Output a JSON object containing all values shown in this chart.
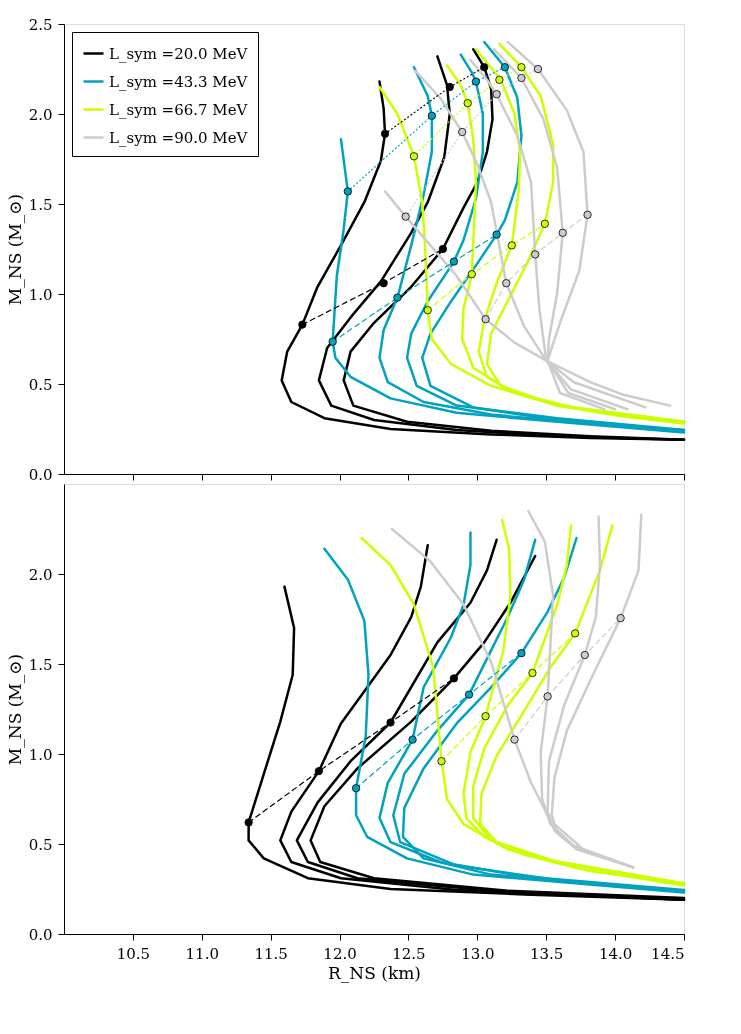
{
  "chart_data": [
    {
      "type": "line",
      "ylabel": "M_NS   (M_⊙)",
      "xlim": [
        10,
        14.5
      ],
      "ylim": [
        0,
        2.5
      ],
      "tick_labels": "y",
      "legend": "top left",
      "line_style": "solid",
      "xticks": [
        10.5,
        11,
        11.5,
        12,
        12.5,
        13,
        13.5,
        14,
        14.5
      ],
      "yticks": [
        {
          "value": 0,
          "label": "0.0"
        },
        0.5,
        {
          "value": 1,
          "label": "1.0"
        },
        1.5,
        {
          "value": 2,
          "label": "2.0"
        },
        2.5
      ],
      "series": [
        {
          "name": "L_sym =20.0 MeV",
          "color": "#000000",
          "x": [
            12.29,
            12.32,
            12.33,
            12.3,
            12.18,
            12.01,
            11.84,
            11.73,
            11.62,
            11.58,
            11.65,
            11.89,
            12.37,
            13.1,
            13.82,
            14.5
          ],
          "values": [
            2.18,
            2.03,
            1.89,
            1.74,
            1.51,
            1.27,
            1.04,
            0.83,
            0.68,
            0.52,
            0.4,
            0.31,
            0.25,
            0.22,
            0.2,
            0.19
          ]
        },
        {
          "color": "#000000",
          "x": [
            12.71,
            12.78,
            12.8,
            12.76,
            12.64,
            12.52,
            12.3,
            12.08,
            11.91,
            11.85,
            11.94,
            12.25,
            12.85,
            13.58,
            14.5
          ],
          "values": [
            2.32,
            2.16,
            2.0,
            1.76,
            1.51,
            1.34,
            1.07,
            0.87,
            0.7,
            0.52,
            0.38,
            0.3,
            0.245,
            0.21,
            0.19
          ]
        },
        {
          "color": "#000000",
          "x": [
            12.97,
            13.05,
            13.1,
            13.11,
            13.07,
            13.0,
            12.9,
            12.75,
            12.52,
            12.25,
            12.08,
            12.03,
            12.1,
            12.49,
            13.1,
            13.82,
            14.5
          ],
          "values": [
            2.36,
            2.26,
            2.14,
            1.97,
            1.79,
            1.62,
            1.48,
            1.25,
            1.04,
            0.84,
            0.68,
            0.52,
            0.38,
            0.29,
            0.24,
            0.21,
            0.19
          ]
        },
        {
          "name": "L_sym =43.3 MeV",
          "color": "#00a2bf",
          "x": [
            12.01,
            12.06,
            12.03,
            11.98,
            11.95,
            11.97,
            12.08,
            12.37,
            12.85,
            13.58,
            14.5
          ],
          "values": [
            1.86,
            1.57,
            1.36,
            1.1,
            0.735,
            0.645,
            0.54,
            0.42,
            0.34,
            0.29,
            0.23
          ]
        },
        {
          "color": "#00a2bf",
          "x": [
            12.54,
            12.64,
            12.67,
            12.67,
            12.61,
            12.52,
            12.42,
            12.32,
            12.29,
            12.35,
            12.61,
            13.1,
            13.82,
            14.5
          ],
          "values": [
            2.26,
            2.1,
            1.99,
            1.79,
            1.55,
            1.27,
            0.98,
            0.8,
            0.645,
            0.51,
            0.4,
            0.33,
            0.28,
            0.245
          ]
        },
        {
          "color": "#00a2bf",
          "x": [
            12.88,
            12.96,
            12.99,
            13.04,
            13.04,
            12.99,
            12.9,
            12.83,
            12.64,
            12.52,
            12.49,
            12.56,
            12.85,
            13.58,
            14.5
          ],
          "values": [
            2.33,
            2.23,
            2.18,
            2.0,
            1.79,
            1.53,
            1.3,
            1.18,
            0.96,
            0.78,
            0.645,
            0.49,
            0.38,
            0.31,
            0.245
          ]
        },
        {
          "color": "#00a2bf",
          "x": [
            13.05,
            13.2,
            13.29,
            13.32,
            13.29,
            13.2,
            13.14,
            13.0,
            12.81,
            12.66,
            12.6,
            12.66,
            12.97,
            13.58,
            14.5
          ],
          "values": [
            2.4,
            2.26,
            2.09,
            1.88,
            1.62,
            1.41,
            1.33,
            1.17,
            0.96,
            0.78,
            0.645,
            0.49,
            0.37,
            0.3,
            0.24
          ]
        },
        {
          "name": "L_sym =66.7 MeV",
          "color": "#ccff00",
          "x": [
            12.29,
            12.42,
            12.54,
            12.6,
            12.62,
            12.64,
            12.67,
            12.81,
            13.1,
            13.58,
            14.06,
            14.5
          ],
          "values": [
            2.15,
            2.0,
            1.765,
            1.51,
            1.27,
            0.91,
            0.75,
            0.61,
            0.49,
            0.38,
            0.32,
            0.28
          ]
        },
        {
          "color": "#ccff00",
          "x": [
            12.78,
            12.88,
            12.93,
            12.97,
            12.99,
            12.96,
            12.9,
            12.89,
            12.97,
            13.22,
            13.58,
            14.5
          ],
          "values": [
            2.27,
            2.16,
            2.06,
            1.86,
            1.62,
            1.11,
            0.92,
            0.75,
            0.59,
            0.47,
            0.38,
            0.29
          ]
        },
        {
          "color": "#ccff00",
          "x": [
            12.99,
            13.17,
            13.27,
            13.31,
            13.3,
            13.25,
            13.14,
            13.05,
            13.01,
            13.07,
            13.27,
            13.7,
            14.5
          ],
          "values": [
            2.36,
            2.19,
            2.0,
            1.79,
            1.57,
            1.27,
            1.06,
            0.85,
            0.68,
            0.54,
            0.45,
            0.37,
            0.28
          ]
        },
        {
          "color": "#ccff00",
          "x": [
            13.16,
            13.32,
            13.46,
            13.55,
            13.55,
            13.49,
            13.36,
            13.22,
            13.1,
            13.07,
            13.17,
            13.58,
            14.5
          ],
          "values": [
            2.39,
            2.26,
            2.1,
            1.83,
            1.62,
            1.39,
            1.17,
            0.96,
            0.78,
            0.61,
            0.49,
            0.38,
            0.29
          ]
        },
        {
          "name": "L_sym =90.0 MeV",
          "color": "#cccccc",
          "x": [
            12.33,
            12.48,
            12.66,
            12.85,
            13.06,
            13.27,
            13.5,
            13.82,
            14.06,
            14.4
          ],
          "values": [
            1.57,
            1.43,
            1.27,
            1.1,
            0.86,
            0.73,
            0.63,
            0.51,
            0.44,
            0.38
          ]
        },
        {
          "color": "#cccccc",
          "x": [
            12.55,
            12.73,
            12.89,
            13.0,
            13.1,
            13.21,
            13.34,
            13.5,
            13.7,
            14.22
          ],
          "values": [
            2.24,
            2.09,
            1.9,
            1.72,
            1.51,
            1.06,
            0.82,
            0.63,
            0.51,
            0.37
          ]
        },
        {
          "color": "#cccccc",
          "x": [
            12.95,
            13.07,
            13.14,
            13.29,
            13.39,
            13.42,
            13.45,
            13.5,
            13.68,
            14.09
          ],
          "values": [
            2.3,
            2.19,
            2.11,
            1.88,
            1.62,
            1.22,
            0.92,
            0.63,
            0.47,
            0.36
          ]
        },
        {
          "color": "#cccccc",
          "x": [
            13.12,
            13.32,
            13.48,
            13.58,
            13.62,
            13.58,
            13.52,
            13.51,
            13.66,
            14.0
          ],
          "values": [
            2.36,
            2.2,
            1.97,
            1.7,
            1.34,
            1.01,
            0.75,
            0.63,
            0.45,
            0.36
          ]
        },
        {
          "color": "#cccccc",
          "x": [
            13.22,
            13.44,
            13.65,
            13.77,
            13.8,
            13.74,
            13.6,
            13.51,
            13.6,
            13.92
          ],
          "values": [
            2.4,
            2.25,
            2.02,
            1.79,
            1.44,
            1.13,
            0.84,
            0.63,
            0.45,
            0.36
          ]
        },
        {
          "color": "#000000",
          "line_style": "dotted",
          "x": [
            12.33,
            12.8,
            13.05
          ],
          "values": [
            1.89,
            2.15,
            2.26
          ]
        },
        {
          "color": "#000000",
          "line_style": "dashed",
          "x": [
            11.73,
            12.32,
            12.75
          ],
          "values": [
            0.83,
            1.06,
            1.25
          ]
        },
        {
          "color": "#00a2bf",
          "line_style": "dotted",
          "x": [
            12.06,
            12.67,
            12.99,
            13.2
          ],
          "values": [
            1.57,
            1.99,
            2.18,
            2.26
          ]
        },
        {
          "color": "#00a2bf",
          "line_style": "dashed",
          "x": [
            11.95,
            12.42,
            12.83,
            13.14
          ],
          "values": [
            0.735,
            0.98,
            1.18,
            1.33
          ]
        },
        {
          "color": "#ccff00",
          "line_style": "dotted",
          "x": [
            12.54,
            12.93,
            13.16,
            13.32
          ],
          "values": [
            1.765,
            2.06,
            2.19,
            2.26
          ]
        },
        {
          "color": "#ccff00",
          "line_style": "dashed",
          "x": [
            12.64,
            12.96,
            13.25,
            13.49
          ],
          "values": [
            0.91,
            1.11,
            1.27,
            1.39
          ]
        },
        {
          "color": "#cccccc",
          "line_style": "dotted",
          "x": [
            12.48,
            12.89,
            13.14,
            13.32,
            13.44
          ],
          "values": [
            1.43,
            1.9,
            2.11,
            2.2,
            2.25
          ]
        },
        {
          "color": "#cccccc",
          "line_style": "dashed",
          "x": [
            13.06,
            13.21,
            13.42,
            13.62,
            13.8
          ],
          "values": [
            0.86,
            1.06,
            1.22,
            1.34,
            1.44
          ]
        },
        {
          "type": "scatter",
          "color": "#000000",
          "marker": "circle",
          "x": [
            12.33,
            12.8,
            13.05,
            11.73,
            12.32,
            12.75
          ],
          "values": [
            1.89,
            2.15,
            2.26,
            0.83,
            1.06,
            1.25
          ]
        },
        {
          "type": "scatter",
          "color": "#00a2bf",
          "marker": "circle",
          "x": [
            12.06,
            12.67,
            12.99,
            13.2,
            11.95,
            12.42,
            12.83,
            13.14
          ],
          "values": [
            1.57,
            1.99,
            2.18,
            2.26,
            0.735,
            0.98,
            1.18,
            1.33
          ]
        },
        {
          "type": "scatter",
          "color": "#ccff00",
          "marker": "circle",
          "x": [
            12.54,
            12.93,
            13.16,
            13.32,
            12.64,
            12.96,
            13.25,
            13.49
          ],
          "values": [
            1.765,
            2.06,
            2.19,
            2.26,
            0.91,
            1.11,
            1.27,
            1.39
          ]
        },
        {
          "type": "scatter",
          "color": "#cccccc",
          "marker": "circle",
          "x": [
            12.48,
            12.89,
            13.14,
            13.32,
            13.44,
            13.06,
            13.21,
            13.42,
            13.62,
            13.8
          ],
          "values": [
            1.43,
            1.9,
            2.11,
            2.2,
            2.25,
            0.86,
            1.06,
            1.22,
            1.34,
            1.44
          ]
        }
      ]
    },
    {
      "type": "line",
      "xlabel": "R_NS   (km)",
      "ylabel": "M_NS   (M_⊙)",
      "xlim": [
        10,
        14.5
      ],
      "ylim": [
        0,
        2.5
      ],
      "legend": "top left",
      "line_style": "solid",
      "xticks": [
        10.5,
        {
          "value": 11,
          "label": "11.0"
        },
        11.5,
        {
          "value": 12,
          "label": "12.0"
        },
        12.5,
        {
          "value": 13,
          "label": "13.0"
        },
        13.5,
        {
          "value": 14,
          "label": "14.0"
        },
        14.5
      ],
      "yticks": [
        {
          "value": 0,
          "label": "0.0"
        },
        0.5,
        {
          "value": 1,
          "label": "1.0"
        },
        1.5,
        {
          "value": 2,
          "label": "2.0"
        }
      ],
      "series": [
        {
          "name": "L_sym =20.0 MeV",
          "color": "#000000",
          "x": [
            11.6,
            11.67,
            11.66,
            11.57,
            11.43,
            11.34,
            11.34,
            11.45,
            11.77,
            12.37,
            13.34,
            14.5
          ],
          "values": [
            1.93,
            1.7,
            1.44,
            1.18,
            0.84,
            0.62,
            0.52,
            0.42,
            0.31,
            0.25,
            0.22,
            0.19
          ]
        },
        {
          "color": "#000000",
          "x": [
            12.64,
            12.59,
            12.52,
            12.37,
            12.2,
            12.01,
            11.85,
            11.65,
            11.57,
            11.65,
            12.01,
            12.85,
            14.5
          ],
          "values": [
            2.16,
            1.93,
            1.76,
            1.55,
            1.37,
            1.17,
            0.905,
            0.68,
            0.52,
            0.4,
            0.31,
            0.245,
            0.19
          ]
        },
        {
          "color": "#000000",
          "x": [
            13.14,
            13.07,
            12.95,
            12.71,
            12.37,
            12.08,
            11.84,
            11.69,
            11.77,
            12.13,
            13.1,
            14.5
          ],
          "values": [
            2.19,
            2.02,
            1.84,
            1.62,
            1.175,
            0.96,
            0.73,
            0.52,
            0.4,
            0.31,
            0.24,
            0.19
          ]
        },
        {
          "color": "#000000",
          "x": [
            13.42,
            13.24,
            13.05,
            12.83,
            12.52,
            12.13,
            11.89,
            11.79,
            11.86,
            12.25,
            13.22,
            14.5
          ],
          "values": [
            2.1,
            1.84,
            1.62,
            1.42,
            1.18,
            0.92,
            0.71,
            0.52,
            0.4,
            0.31,
            0.24,
            0.2
          ]
        },
        {
          "name": "L_sym =43.3 MeV",
          "color": "#00a2bf",
          "x": [
            11.89,
            12.06,
            12.18,
            12.21,
            12.19,
            12.12,
            12.12,
            12.2,
            12.49,
            12.97,
            13.58,
            14.5
          ],
          "values": [
            2.14,
            1.97,
            1.74,
            1.44,
            1.1,
            0.81,
            0.66,
            0.54,
            0.42,
            0.33,
            0.29,
            0.23
          ]
        },
        {
          "color": "#00a2bf",
          "x": [
            12.95,
            12.95,
            12.9,
            12.81,
            12.61,
            12.53,
            12.35,
            12.29,
            12.37,
            12.73,
            13.34,
            14.5
          ],
          "values": [
            2.23,
            2.05,
            1.83,
            1.65,
            1.37,
            1.08,
            0.84,
            0.645,
            0.51,
            0.4,
            0.32,
            0.245
          ]
        },
        {
          "color": "#00a2bf",
          "x": [
            13.42,
            13.34,
            13.22,
            12.94,
            12.71,
            12.47,
            12.39,
            12.44,
            12.85,
            13.58,
            14.5
          ],
          "values": [
            2.19,
            1.97,
            1.76,
            1.33,
            1.13,
            0.89,
            0.66,
            0.51,
            0.38,
            0.3,
            0.24
          ]
        },
        {
          "color": "#00a2bf",
          "x": [
            13.72,
            13.63,
            13.51,
            13.32,
            13.1,
            12.85,
            12.61,
            12.47,
            12.46,
            12.61,
            13.1,
            14.5
          ],
          "values": [
            2.2,
            1.98,
            1.79,
            1.56,
            1.37,
            1.17,
            0.92,
            0.7,
            0.54,
            0.42,
            0.33,
            0.24
          ]
        },
        {
          "name": "L_sym =66.7 MeV",
          "color": "#ccff00",
          "x": [
            12.16,
            12.37,
            12.54,
            12.68,
            12.74,
            12.78,
            12.9,
            13.22,
            13.7,
            14.5
          ],
          "values": [
            2.2,
            2.05,
            1.83,
            1.48,
            0.96,
            0.75,
            0.61,
            0.47,
            0.37,
            0.27
          ]
        },
        {
          "color": "#ccff00",
          "x": [
            13.18,
            13.23,
            13.24,
            13.19,
            13.06,
            12.95,
            12.9,
            12.92,
            13.05,
            13.34,
            13.82,
            14.5
          ],
          "values": [
            2.3,
            2.14,
            1.88,
            1.58,
            1.21,
            1.01,
            0.78,
            0.645,
            0.54,
            0.44,
            0.35,
            0.28
          ]
        },
        {
          "color": "#ccff00",
          "x": [
            13.68,
            13.65,
            13.58,
            13.4,
            13.22,
            13.05,
            12.97,
            12.97,
            13.1,
            13.46,
            14.5
          ],
          "values": [
            2.27,
            2.05,
            1.83,
            1.45,
            1.27,
            1.03,
            0.82,
            0.645,
            0.52,
            0.42,
            0.28
          ]
        },
        {
          "color": "#ccff00",
          "x": [
            13.98,
            13.89,
            13.71,
            13.53,
            13.34,
            13.14,
            13.03,
            13.02,
            13.14,
            13.58,
            14.5
          ],
          "values": [
            2.27,
            2.02,
            1.67,
            1.48,
            1.24,
            0.99,
            0.78,
            0.61,
            0.51,
            0.4,
            0.28
          ]
        },
        {
          "name": "L_sym =90.0 MeV",
          "color": "#cccccc",
          "x": [
            12.38,
            12.66,
            12.9,
            13.1,
            13.27,
            13.39,
            13.53,
            13.77,
            14.13
          ],
          "values": [
            2.25,
            2.07,
            1.83,
            1.51,
            1.08,
            0.84,
            0.63,
            0.47,
            0.37
          ]
        },
        {
          "color": "#cccccc",
          "x": [
            13.37,
            13.49,
            13.55,
            13.51,
            13.46,
            13.47,
            13.53,
            13.7,
            14.13
          ],
          "values": [
            2.35,
            2.18,
            1.88,
            1.32,
            1.01,
            0.75,
            0.61,
            0.49,
            0.37
          ]
        },
        {
          "color": "#cccccc",
          "x": [
            13.88,
            13.89,
            13.86,
            13.78,
            13.63,
            13.52,
            13.51,
            13.56,
            13.7,
            14.13
          ],
          "values": [
            2.32,
            2.05,
            1.76,
            1.55,
            1.27,
            0.96,
            0.68,
            0.575,
            0.49,
            0.37
          ]
        },
        {
          "color": "#cccccc",
          "x": [
            14.19,
            14.17,
            14.04,
            13.82,
            13.65,
            13.56,
            13.54,
            13.58,
            13.72,
            14.13
          ],
          "values": [
            2.33,
            2.02,
            1.755,
            1.41,
            1.13,
            0.87,
            0.66,
            0.56,
            0.47,
            0.37
          ]
        },
        {
          "color": "#000000",
          "line_style": "dashed",
          "x": [
            11.34,
            11.85,
            12.37,
            12.83
          ],
          "values": [
            0.62,
            0.905,
            1.175,
            1.42
          ]
        },
        {
          "color": "#00a2bf",
          "line_style": "dashed",
          "x": [
            12.12,
            12.53,
            12.94,
            13.32
          ],
          "values": [
            0.81,
            1.08,
            1.33,
            1.56
          ]
        },
        {
          "color": "#ccff00",
          "line_style": "dashed",
          "x": [
            12.74,
            13.06,
            13.4,
            13.71
          ],
          "values": [
            0.96,
            1.21,
            1.45,
            1.67
          ]
        },
        {
          "color": "#cccccc",
          "line_style": "dashed",
          "x": [
            13.27,
            13.51,
            13.78,
            14.04
          ],
          "values": [
            1.08,
            1.32,
            1.55,
            1.755
          ]
        },
        {
          "type": "scatter",
          "color": "#000000",
          "marker": "circle",
          "x": [
            11.34,
            11.85,
            12.37,
            12.83
          ],
          "values": [
            0.62,
            0.905,
            1.175,
            1.42
          ]
        },
        {
          "type": "scatter",
          "color": "#00a2bf",
          "marker": "circle",
          "x": [
            12.12,
            12.53,
            12.94,
            13.32
          ],
          "values": [
            0.81,
            1.08,
            1.33,
            1.56
          ]
        },
        {
          "type": "scatter",
          "color": "#ccff00",
          "marker": "circle",
          "x": [
            12.74,
            13.06,
            13.4,
            13.71
          ],
          "values": [
            0.96,
            1.21,
            1.45,
            1.67
          ]
        },
        {
          "type": "scatter",
          "color": "#cccccc",
          "marker": "circle",
          "x": [
            13.27,
            13.51,
            13.78,
            14.04
          ],
          "values": [
            1.08,
            1.32,
            1.55,
            1.755
          ]
        }
      ]
    }
  ]
}
